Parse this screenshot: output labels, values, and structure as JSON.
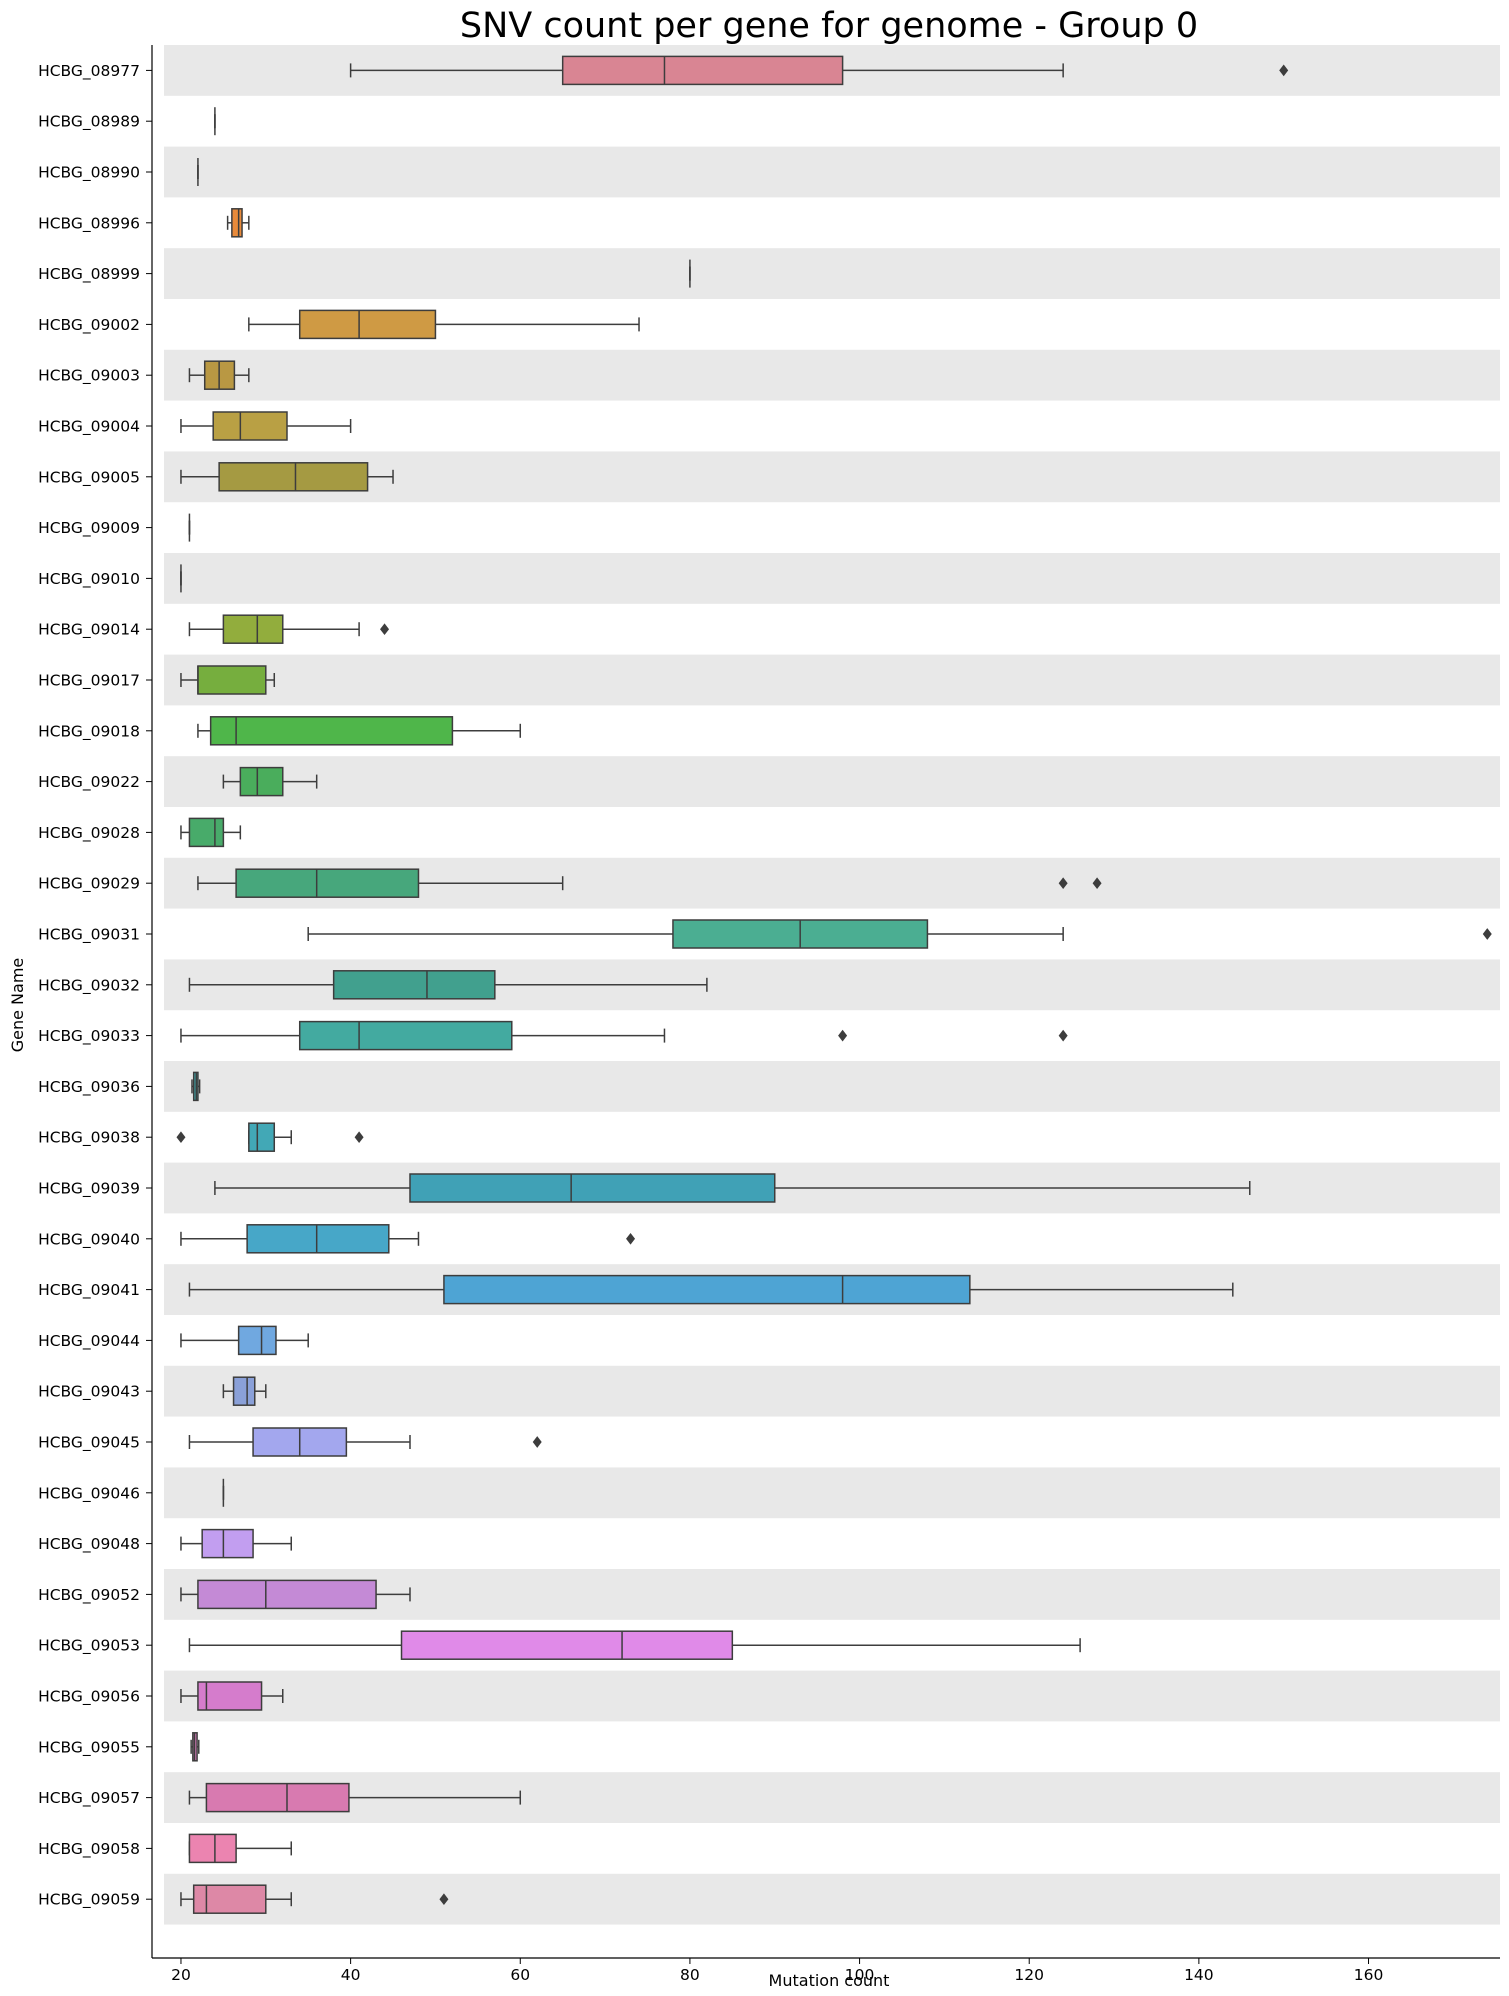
{
  "chart_data": {
    "type": "box",
    "orientation": "horizontal",
    "title": "SNV count per gene for genome - Group 0",
    "xlabel": "Mutation count",
    "ylabel": "Gene Name",
    "xlim": [
      18,
      175.5
    ],
    "xticks": [
      20,
      40,
      60,
      80,
      100,
      120,
      140,
      160
    ],
    "grid": false,
    "legend": "none",
    "row_band_color": "#e8e8e8",
    "genes": [
      {
        "name": "HCBG_08977",
        "color": "#d98593",
        "whislo": 40,
        "q1": 65,
        "med": 77,
        "q3": 98,
        "whishi": 124,
        "outliers": [
          150
        ]
      },
      {
        "name": "HCBG_08989",
        "color": "#d98a6f",
        "whislo": 24,
        "q1": 24,
        "med": 24,
        "q3": 24,
        "whishi": 24,
        "outliers": []
      },
      {
        "name": "HCBG_08990",
        "color": "#d98a6f",
        "whislo": 22,
        "q1": 22,
        "med": 22,
        "q3": 22,
        "whishi": 22,
        "outliers": []
      },
      {
        "name": "HCBG_08996",
        "color": "#e88a3a",
        "whislo": 25.5,
        "q1": 26,
        "med": 26.8,
        "q3": 27.2,
        "whishi": 28,
        "outliers": []
      },
      {
        "name": "HCBG_08999",
        "color": "#d8923a",
        "whislo": 80,
        "q1": 80,
        "med": 80,
        "q3": 80,
        "whishi": 80,
        "outliers": []
      },
      {
        "name": "HCBG_09002",
        "color": "#cf9a44",
        "whislo": 28,
        "q1": 34,
        "med": 41,
        "q3": 50,
        "whishi": 74,
        "outliers": []
      },
      {
        "name": "HCBG_09003",
        "color": "#b99843",
        "whislo": 21,
        "q1": 22.8,
        "med": 24.5,
        "q3": 26.3,
        "whishi": 28,
        "outliers": []
      },
      {
        "name": "HCBG_09004",
        "color": "#b9a044",
        "whislo": 20,
        "q1": 23.8,
        "med": 27,
        "q3": 32.5,
        "whishi": 40,
        "outliers": []
      },
      {
        "name": "HCBG_09005",
        "color": "#a59a42",
        "whislo": 20,
        "q1": 24.5,
        "med": 33.5,
        "q3": 42,
        "whishi": 45,
        "outliers": []
      },
      {
        "name": "HCBG_09009",
        "color": "#9aa040",
        "whislo": 21,
        "q1": 21,
        "med": 21,
        "q3": 21,
        "whishi": 21,
        "outliers": []
      },
      {
        "name": "HCBG_09010",
        "color": "#9aa040",
        "whislo": 20,
        "q1": 20,
        "med": 20,
        "q3": 20,
        "whishi": 20,
        "outliers": []
      },
      {
        "name": "HCBG_09014",
        "color": "#92ad3d",
        "whislo": 21,
        "q1": 25,
        "med": 29,
        "q3": 32,
        "whishi": 41,
        "outliers": [
          44
        ]
      },
      {
        "name": "HCBG_09017",
        "color": "#76ae3e",
        "whislo": 20,
        "q1": 22,
        "med": 22,
        "q3": 30,
        "whishi": 31,
        "outliers": []
      },
      {
        "name": "HCBG_09018",
        "color": "#4fb64a",
        "whislo": 22,
        "q1": 23.5,
        "med": 26.5,
        "q3": 52,
        "whishi": 60,
        "outliers": []
      },
      {
        "name": "HCBG_09022",
        "color": "#4aad5c",
        "whislo": 25,
        "q1": 27,
        "med": 29,
        "q3": 32,
        "whishi": 36,
        "outliers": []
      },
      {
        "name": "HCBG_09028",
        "color": "#48ab6a",
        "whislo": 20,
        "q1": 21,
        "med": 24,
        "q3": 25,
        "whishi": 27,
        "outliers": []
      },
      {
        "name": "HCBG_09029",
        "color": "#47a77c",
        "whislo": 22,
        "q1": 26.5,
        "med": 36,
        "q3": 48,
        "whishi": 65,
        "outliers": [
          124,
          128
        ]
      },
      {
        "name": "HCBG_09031",
        "color": "#4bae92",
        "whislo": 35,
        "q1": 78,
        "med": 93,
        "q3": 108,
        "whishi": 124,
        "outliers": [
          174
        ]
      },
      {
        "name": "HCBG_09032",
        "color": "#41a08e",
        "whislo": 21,
        "q1": 38,
        "med": 49,
        "q3": 57,
        "whishi": 82,
        "outliers": []
      },
      {
        "name": "HCBG_09033",
        "color": "#43aaa0",
        "whislo": 20,
        "q1": 34,
        "med": 41,
        "q3": 59,
        "whishi": 77,
        "outliers": [
          98,
          124
        ]
      },
      {
        "name": "HCBG_09036",
        "color": "#40a3a6",
        "whislo": 21.3,
        "q1": 21.5,
        "med": 21.8,
        "q3": 22,
        "whishi": 22.2,
        "outliers": []
      },
      {
        "name": "HCBG_09038",
        "color": "#42a8b6",
        "whislo": 28,
        "q1": 28,
        "med": 29,
        "q3": 31,
        "whishi": 33,
        "outliers": [
          20,
          41
        ]
      },
      {
        "name": "HCBG_09039",
        "color": "#40a1b6",
        "whislo": 24,
        "q1": 47,
        "med": 66,
        "q3": 90,
        "whishi": 146,
        "outliers": []
      },
      {
        "name": "HCBG_09040",
        "color": "#47a7c8",
        "whislo": 20,
        "q1": 27.8,
        "med": 36,
        "q3": 44.5,
        "whishi": 48,
        "outliers": [
          73
        ]
      },
      {
        "name": "HCBG_09041",
        "color": "#4ea4d4",
        "whislo": 21,
        "q1": 51,
        "med": 98,
        "q3": 113,
        "whishi": 144,
        "outliers": []
      },
      {
        "name": "HCBG_09044",
        "color": "#70a8e0",
        "whislo": 20,
        "q1": 26.8,
        "med": 29.5,
        "q3": 31.2,
        "whishi": 35,
        "outliers": []
      },
      {
        "name": "HCBG_09043",
        "color": "#8aa0d8",
        "whislo": 25,
        "q1": 26.2,
        "med": 27.8,
        "q3": 28.7,
        "whishi": 30,
        "outliers": []
      },
      {
        "name": "HCBG_09045",
        "color": "#a3a7ee",
        "whislo": 21,
        "q1": 28.5,
        "med": 34,
        "q3": 39.5,
        "whishi": 47,
        "outliers": [
          62
        ]
      },
      {
        "name": "HCBG_09046",
        "color": "#b49bea",
        "whislo": 25,
        "q1": 25,
        "med": 25,
        "q3": 25,
        "whishi": 25,
        "outliers": []
      },
      {
        "name": "HCBG_09048",
        "color": "#c29ef0",
        "whislo": 20,
        "q1": 22.5,
        "med": 25,
        "q3": 28.5,
        "whishi": 33,
        "outliers": []
      },
      {
        "name": "HCBG_09052",
        "color": "#c48ad6",
        "whislo": 20,
        "q1": 22,
        "med": 30,
        "q3": 43,
        "whishi": 47,
        "outliers": []
      },
      {
        "name": "HCBG_09053",
        "color": "#e08ae8",
        "whislo": 21,
        "q1": 46,
        "med": 72,
        "q3": 85,
        "whishi": 126,
        "outliers": []
      },
      {
        "name": "HCBG_09056",
        "color": "#d57ccc",
        "whislo": 20,
        "q1": 22,
        "med": 23,
        "q3": 29.5,
        "whishi": 32,
        "outliers": []
      },
      {
        "name": "HCBG_09055",
        "color": "#d47ab8",
        "whislo": 21.2,
        "q1": 21.4,
        "med": 21.6,
        "q3": 21.9,
        "whishi": 22.1,
        "outliers": []
      },
      {
        "name": "HCBG_09057",
        "color": "#d87ab0",
        "whislo": 21,
        "q1": 23,
        "med": 32.5,
        "q3": 39.8,
        "whishi": 60,
        "outliers": []
      },
      {
        "name": "HCBG_09058",
        "color": "#eb84b0",
        "whislo": 21,
        "q1": 21,
        "med": 24,
        "q3": 26.5,
        "whishi": 33,
        "outliers": []
      },
      {
        "name": "HCBG_09059",
        "color": "#dd88a6",
        "whislo": 20,
        "q1": 21.5,
        "med": 23,
        "q3": 30,
        "whishi": 33,
        "outliers": [
          51
        ]
      }
    ]
  }
}
